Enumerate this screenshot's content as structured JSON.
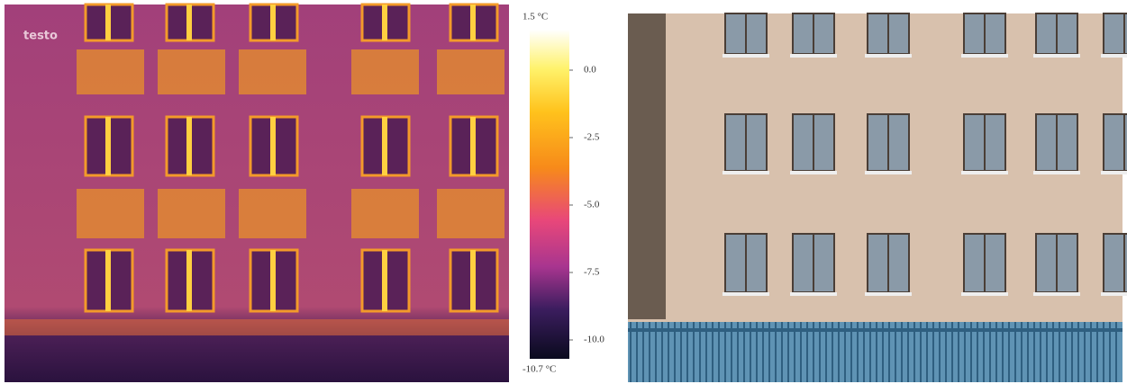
{
  "thermal_image": {
    "logo": "testo"
  },
  "color_scale": {
    "max": {
      "value": 1.5,
      "label": "1.5 °C"
    },
    "min": {
      "value": -10.7,
      "label": "-10.7 °C"
    },
    "ticks": [
      {
        "value": 0,
        "label": "0.0"
      },
      {
        "value": -2.5,
        "label": "-2.5"
      },
      {
        "value": -5,
        "label": "-5.0"
      },
      {
        "value": -7.5,
        "label": "-7.5"
      },
      {
        "value": -10,
        "label": "-10.0"
      }
    ]
  }
}
